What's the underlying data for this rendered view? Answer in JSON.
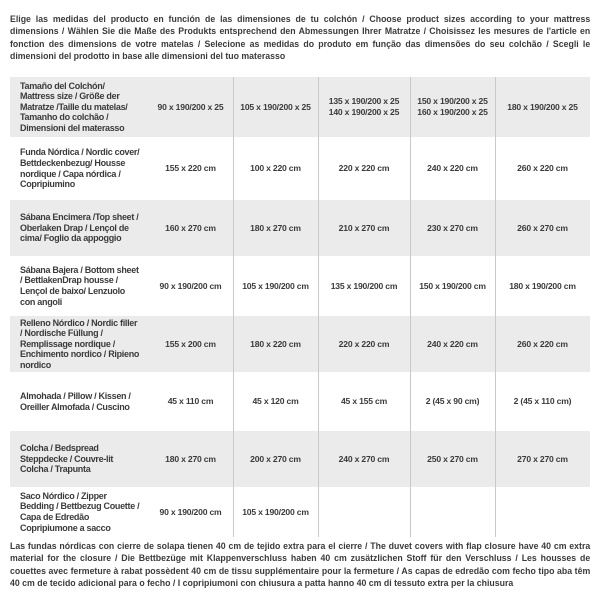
{
  "intro": "Elige las medidas del producto en función de las dimensiones de tu colchón / Choose product sizes according to your mattress dimensions / Wählen Sie die Maße des Produkts entsprechend den Abmessungen Ihrer Matratze / Choisissez les mesures de l'article en fonction des dimensions de votre matelas / Selecione as medidas do produto em função das dimensões do seu colchão / Scegli le dimensioni del prodotto in base alle dimensioni del tuo materasso",
  "footnote": "Las fundas nórdicas con cierre de solapa tienen 40 cm de tejido extra para el cierre  / The duvet covers with flap closure have 40 cm extra material for the closure / Die Bettbezüge mit Klappenverschluss haben 40 cm zusätzlichen Stoff für den Verschluss / Les housses de couettes avec fermeture à rabat possèdent 40 cm de tissu supplémentaire pour la fermeture / As capas de edredão com fecho tipo aba têm 40 cm de tecido adicional para o fecho / I copripiumoni con chiusura a patta hanno 40 cm di tessuto extra per la chiusura",
  "table": {
    "rows": [
      {
        "label": "Tamaño del Colchón/ Mattress size / Größe der Matratze /Taille du matelas/ Tamanho do colchão / Dimensioni del materasso",
        "values": [
          "90 x 190/200 x 25",
          "105 x 190/200 x 25",
          "135 x 190/200 x 25\n140 x 190/200 x 25",
          "150 x 190/200 x 25\n160 x 190/200 x 25",
          "180 x 190/200 x 25"
        ]
      },
      {
        "label": "Funda Nórdica /  Nordic cover/ Bettdeckenbezug/ Housse nordique  / Capa nórdica / Copripiumino",
        "values": [
          "155 x 220 cm",
          "100 x 220 cm",
          "220 x 220 cm",
          "240 x 220 cm",
          "260 x 220 cm"
        ]
      },
      {
        "label": "Sábana Encimera /Top sheet / Oberlaken Drap / Lençol de cima/ Foglio da appoggio",
        "values": [
          "160 x 270 cm",
          "180 x 270 cm",
          "210 x 270 cm",
          "230 x 270 cm",
          "260 x 270 cm"
        ]
      },
      {
        "label": "Sábana Bajera / Bottom sheet / BettlakenDrap housse / Lençol de baixo/ Lenzuolo con angoli",
        "values": [
          "90 x 190/200 cm",
          "105 x 190/200 cm",
          "135 x 190/200 cm",
          "150 x 190/200 cm",
          "180 x 190/200 cm"
        ]
      },
      {
        "label": "Relleno Nórdico / Nordic filler / Nordische Füllung / Remplissage nordique / Enchimento nordico / Ripieno nordico",
        "values": [
          "155 x 200 cm",
          "180 x 220 cm",
          "220 x 220 cm",
          "240 x 220 cm",
          "260 x 220 cm"
        ]
      },
      {
        "label": "Almohada  / Pillow / Kissen / Oreiller Almofada / Cuscino",
        "values": [
          "45 x 110 cm",
          "45 x 120 cm",
          "45 x 155 cm",
          "2 (45 x 90 cm)",
          "2 (45 x 110 cm)"
        ]
      },
      {
        "label": "Colcha / Bedspread Steppdecke / Couvre-lit Colcha / Trapunta",
        "values": [
          "180 x 270 cm",
          "200 x 270 cm",
          "240 x 270 cm",
          "250 x 270 cm",
          "270 x 270 cm"
        ]
      },
      {
        "label": "Saco Nórdico / Zipper Bedding / Bettbezug Couette  / Capa de Edredão Copripiumone a sacco",
        "values": [
          "90 x 190/200 cm",
          "105 x 190/200 cm",
          "",
          "",
          ""
        ]
      }
    ]
  },
  "colors": {
    "text": "#3b3b3b",
    "row_alt_bg": "#ebebeb",
    "divider": "#c9c9c9",
    "background": "#ffffff"
  }
}
